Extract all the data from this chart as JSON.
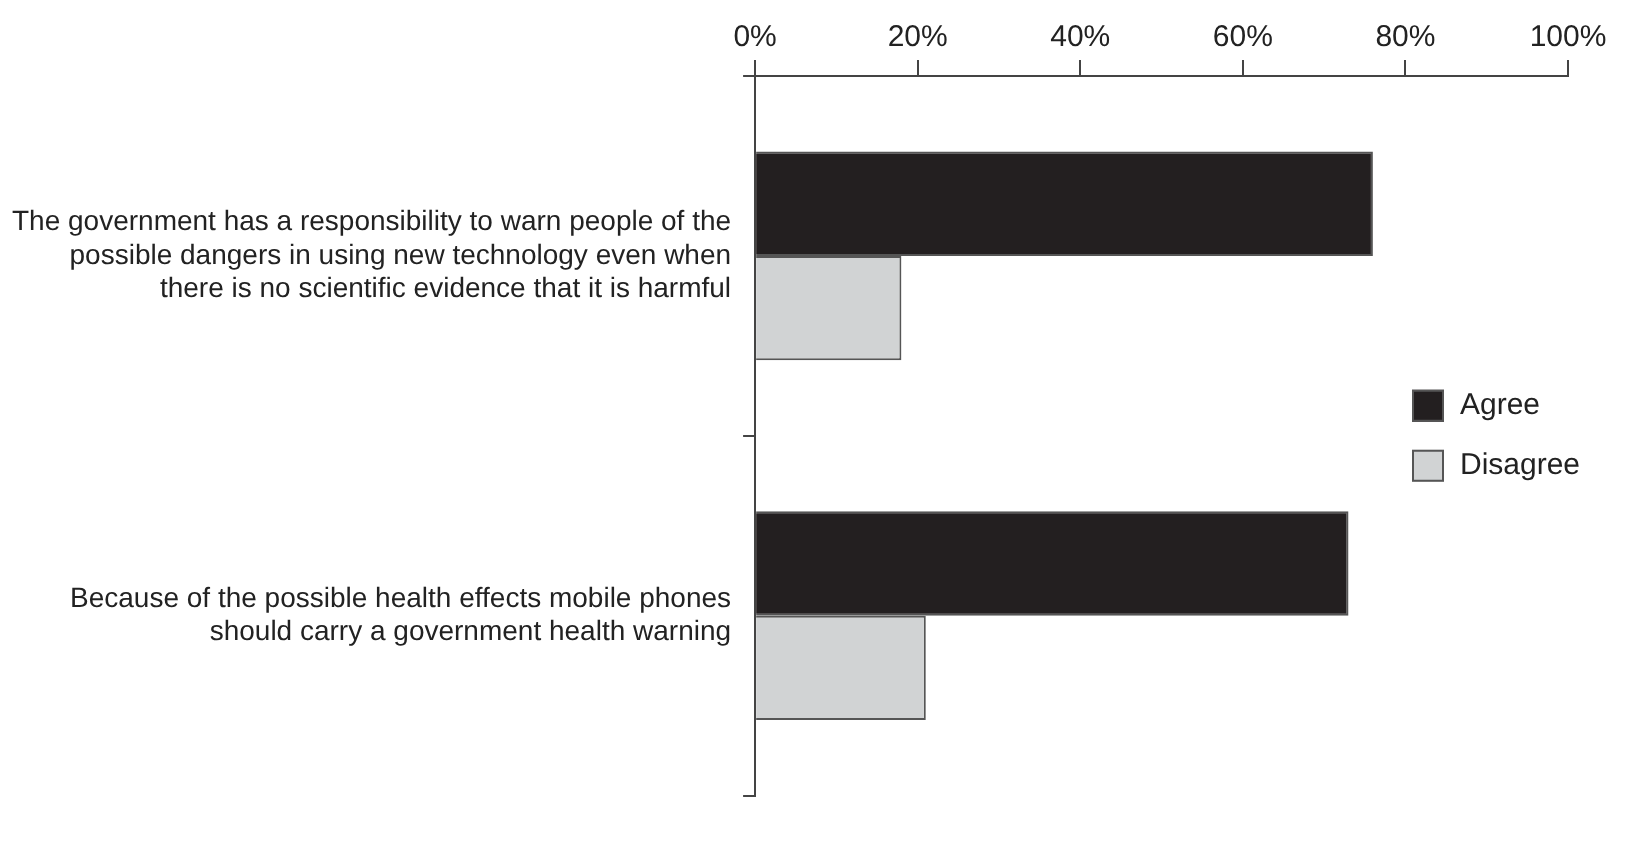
{
  "chart_data": {
    "type": "bar",
    "orientation": "horizontal",
    "categories": [
      "The government has a responsibility to warn people of the possible dangers in using new technology even when there is no scientific evidence that it is harmful",
      "Because of the possible health effects mobile phones should carry a government health warning"
    ],
    "series": [
      {
        "name": "Agree",
        "color": "#231f20",
        "values": [
          76,
          73
        ]
      },
      {
        "name": "Disagree",
        "color": "#d1d3d4",
        "values": [
          18,
          21
        ]
      }
    ],
    "xlim": [
      0,
      100
    ],
    "xticks": [
      {
        "value": 0,
        "label": "0%"
      },
      {
        "value": 20,
        "label": "20%"
      },
      {
        "value": 40,
        "label": "40%"
      },
      {
        "value": 60,
        "label": "60%"
      },
      {
        "value": 80,
        "label": "80%"
      },
      {
        "value": 100,
        "label": "100%"
      }
    ],
    "grid": false,
    "legend": "right"
  }
}
